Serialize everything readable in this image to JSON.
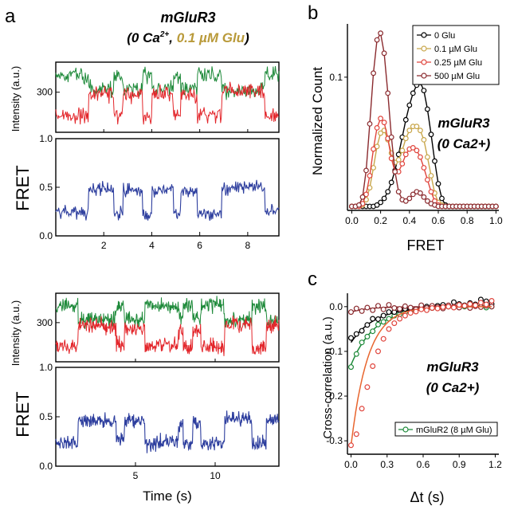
{
  "header": {
    "title": "mGluR3",
    "subtitle_prefix": "(0 Ca",
    "subtitle_sup": "2+",
    "subtitle_sep": ", ",
    "subtitle_glu": "0.1 µM Glu",
    "subtitle_suffix": ")"
  },
  "colors": {
    "green_donor": "#1e8a3a",
    "red_acceptor": "#e3262b",
    "blue_fret": "#2d3e9e",
    "c_0glu": "#000000",
    "c_01glu": "#c8a64a",
    "c_025glu": "#e0443c",
    "c_500glu": "#8a2a2e",
    "c_mglur2": "#1e8a3a",
    "c_fit": "#e8652e"
  },
  "chart_data": [
    {
      "id": "a_top",
      "panel_label": "a",
      "type": "line",
      "xlim": [
        0,
        9.3
      ],
      "xticks": [
        2,
        4,
        6,
        8
      ],
      "trace_ylim": [
        100,
        450
      ],
      "trace_yticks": [
        300
      ],
      "trace_ylabel": "Intensity (a.u.)",
      "fret_ylim": [
        0,
        1.0
      ],
      "fret_yticks": [
        "0.0",
        "0.5",
        "1.0"
      ],
      "fret_ylabel": "FRET",
      "xlabel": "",
      "segments": [
        {
          "t": [
            0,
            1.35
          ],
          "fret": 0.24
        },
        {
          "t": [
            1.35,
            2.4
          ],
          "fret": 0.48
        },
        {
          "t": [
            2.4,
            2.8
          ],
          "fret": 0.26
        },
        {
          "t": [
            2.8,
            3.6
          ],
          "fret": 0.47
        },
        {
          "t": [
            3.6,
            4.0
          ],
          "fret": 0.22
        },
        {
          "t": [
            4.0,
            4.9
          ],
          "fret": 0.48
        },
        {
          "t": [
            4.9,
            5.2
          ],
          "fret": 0.25
        },
        {
          "t": [
            5.2,
            5.9
          ],
          "fret": 0.47
        },
        {
          "t": [
            5.9,
            6.9
          ],
          "fret": 0.24
        },
        {
          "t": [
            6.9,
            8.7
          ],
          "fret": 0.5
        },
        {
          "t": [
            8.7,
            9.3
          ],
          "fret": 0.24
        }
      ]
    },
    {
      "id": "a_bottom",
      "type": "line",
      "xlim": [
        0,
        14
      ],
      "xticks": [
        5,
        10
      ],
      "trace_ylim": [
        100,
        450
      ],
      "trace_yticks": [
        300
      ],
      "trace_ylabel": "Intensity (a.u.)",
      "fret_ylim": [
        0,
        1.0
      ],
      "fret_yticks": [
        "0.0",
        "0.5",
        "1.0"
      ],
      "fret_ylabel": "FRET",
      "xlabel": "Time (s)",
      "segments": [
        {
          "t": [
            0,
            1.4
          ],
          "fret": 0.24
        },
        {
          "t": [
            1.4,
            3.8
          ],
          "fret": 0.46
        },
        {
          "t": [
            3.8,
            4.3
          ],
          "fret": 0.27
        },
        {
          "t": [
            4.3,
            5.6
          ],
          "fret": 0.45
        },
        {
          "t": [
            5.6,
            6.3
          ],
          "fret": 0.22
        },
        {
          "t": [
            6.3,
            7.7
          ],
          "fret": 0.25
        },
        {
          "t": [
            7.7,
            8.0
          ],
          "fret": 0.42
        },
        {
          "t": [
            8.0,
            8.6
          ],
          "fret": 0.22
        },
        {
          "t": [
            8.6,
            9.1
          ],
          "fret": 0.43
        },
        {
          "t": [
            9.1,
            10.6
          ],
          "fret": 0.23
        },
        {
          "t": [
            10.6,
            12.3
          ],
          "fret": 0.48
        },
        {
          "t": [
            12.3,
            13.2
          ],
          "fret": 0.23
        },
        {
          "t": [
            13.2,
            14
          ],
          "fret": 0.47
        }
      ]
    },
    {
      "id": "b",
      "panel_label": "b",
      "type": "line",
      "xlabel": "FRET",
      "ylabel": "Normalized Count",
      "xlim": [
        -0.03,
        1.02
      ],
      "ylim": [
        0,
        0.14
      ],
      "xticks": [
        "0.0",
        "0.2",
        "0.4",
        "0.6",
        "0.8",
        "1.0"
      ],
      "yticks": [
        "0.1"
      ],
      "annotation": [
        "mGluR3",
        "(0 Ca2+)"
      ],
      "legend_position": "top-right",
      "x": [
        0.0,
        0.025,
        0.05,
        0.075,
        0.1,
        0.125,
        0.15,
        0.175,
        0.2,
        0.225,
        0.25,
        0.275,
        0.3,
        0.325,
        0.35,
        0.375,
        0.4,
        0.425,
        0.45,
        0.475,
        0.5,
        0.525,
        0.55,
        0.575,
        0.6,
        0.625,
        0.65,
        0.675,
        0.7,
        0.725,
        0.75,
        0.775,
        0.8,
        0.825,
        0.85,
        0.875,
        0.9,
        0.925,
        0.95,
        0.975,
        1.0
      ],
      "series": [
        {
          "name": "0 Glu",
          "color": "#000000",
          "values": [
            0.003,
            0.003,
            0.003,
            0.003,
            0.003,
            0.003,
            0.003,
            0.004,
            0.006,
            0.009,
            0.014,
            0.021,
            0.03,
            0.042,
            0.055,
            0.068,
            0.079,
            0.088,
            0.094,
            0.096,
            0.09,
            0.076,
            0.057,
            0.037,
            0.02,
            0.009,
            0.004,
            0.003,
            0.003,
            0.003,
            0.003,
            0.003,
            0.003,
            0.003,
            0.003,
            0.003,
            0.003,
            0.003,
            0.003,
            0.003,
            0.003
          ]
        },
        {
          "name": "0.1 µM Glu",
          "color": "#c8a64a",
          "values": [
            0.003,
            0.003,
            0.003,
            0.004,
            0.008,
            0.017,
            0.032,
            0.048,
            0.058,
            0.06,
            0.053,
            0.043,
            0.036,
            0.038,
            0.045,
            0.054,
            0.06,
            0.063,
            0.063,
            0.06,
            0.053,
            0.04,
            0.026,
            0.013,
            0.006,
            0.004,
            0.003,
            0.003,
            0.003,
            0.003,
            0.003,
            0.003,
            0.003,
            0.003,
            0.003,
            0.003,
            0.003,
            0.003,
            0.003,
            0.003,
            0.003
          ]
        },
        {
          "name": "0.25 µM Glu",
          "color": "#e0443c",
          "values": [
            0.003,
            0.003,
            0.003,
            0.005,
            0.012,
            0.026,
            0.046,
            0.062,
            0.069,
            0.066,
            0.054,
            0.039,
            0.029,
            0.029,
            0.035,
            0.042,
            0.046,
            0.047,
            0.045,
            0.04,
            0.032,
            0.023,
            0.014,
            0.007,
            0.004,
            0.003,
            0.003,
            0.003,
            0.003,
            0.003,
            0.003,
            0.003,
            0.003,
            0.003,
            0.003,
            0.003,
            0.003,
            0.003,
            0.003,
            0.003,
            0.003
          ]
        },
        {
          "name": "500 µM Glu",
          "color": "#8a2a2e",
          "values": [
            0.003,
            0.003,
            0.004,
            0.01,
            0.03,
            0.065,
            0.103,
            0.128,
            0.133,
            0.118,
            0.088,
            0.055,
            0.029,
            0.014,
            0.008,
            0.007,
            0.009,
            0.012,
            0.014,
            0.013,
            0.01,
            0.007,
            0.005,
            0.004,
            0.003,
            0.003,
            0.003,
            0.003,
            0.003,
            0.003,
            0.003,
            0.003,
            0.003,
            0.003,
            0.003,
            0.003,
            0.003,
            0.003,
            0.003,
            0.003,
            0.003
          ]
        }
      ]
    },
    {
      "id": "c",
      "panel_label": "c",
      "type": "scatter",
      "xlabel": "Δt (s)",
      "ylabel": "Cross-correlation (a.u.)",
      "xlim": [
        -0.03,
        1.23
      ],
      "ylim": [
        -0.33,
        0.03
      ],
      "xticks": [
        "0.0",
        "0.3",
        "0.6",
        "0.9",
        "1.2"
      ],
      "yticks": [
        "0.0",
        "-0.1",
        "-0.2",
        "-0.3"
      ],
      "annotation": [
        "mGluR3",
        "(0 Ca2+)"
      ],
      "legend_position": "bottom-right",
      "legend_label": "mGluR2 (8 µM Glu)",
      "series": [
        {
          "name": "mGluR2 (8 µM Glu)",
          "color": "#1e8a3a",
          "fit_color": "#1e8a3a",
          "amp": -0.13,
          "tau": 0.2,
          "x": [
            0.0,
            0.045,
            0.09,
            0.135,
            0.18,
            0.225,
            0.27,
            0.315,
            0.36,
            0.405,
            0.45,
            0.495,
            0.54,
            0.585,
            0.63,
            0.675,
            0.72,
            0.765,
            0.81,
            0.855,
            0.9,
            0.945,
            0.99,
            1.035,
            1.08,
            1.125,
            1.17
          ],
          "values": [
            -0.135,
            -0.106,
            -0.08,
            -0.067,
            -0.055,
            -0.04,
            -0.034,
            -0.027,
            -0.02,
            -0.017,
            -0.013,
            -0.01,
            -0.007,
            -0.004,
            -0.005,
            -0.003,
            0.0,
            -0.002,
            0.001,
            -0.001,
            0.002,
            0.0,
            -0.001,
            0.003,
            0.001,
            -0.002,
            0.0
          ]
        },
        {
          "name": "0 Glu",
          "color": "#000000",
          "fit_color": "#000000",
          "amp": -0.08,
          "tau": 0.2,
          "x": [
            0.0,
            0.045,
            0.09,
            0.135,
            0.18,
            0.225,
            0.27,
            0.315,
            0.36,
            0.405,
            0.45,
            0.495,
            0.54,
            0.585,
            0.63,
            0.675,
            0.72,
            0.765,
            0.81,
            0.855,
            0.9,
            0.945,
            0.99,
            1.035,
            1.08,
            1.125,
            1.17
          ],
          "values": [
            -0.07,
            -0.061,
            -0.054,
            -0.041,
            -0.027,
            -0.028,
            -0.02,
            -0.012,
            -0.012,
            -0.008,
            -0.005,
            -0.004,
            -0.006,
            -0.002,
            0.0,
            -0.003,
            0.002,
            0.004,
            0.0,
            0.01,
            0.006,
            0.003,
            0.008,
            0.005,
            0.016,
            0.012,
            0.006
          ]
        },
        {
          "name": "500 µM Glu",
          "color": "#8a2a2e",
          "fit_color": "#8a2a2e",
          "amp": -0.012,
          "tau": 0.15,
          "x": [
            0.0,
            0.045,
            0.09,
            0.135,
            0.18,
            0.225,
            0.27,
            0.315,
            0.36,
            0.405,
            0.45,
            0.495,
            0.54,
            0.585,
            0.63,
            0.675,
            0.72,
            0.765,
            0.81,
            0.855,
            0.9,
            0.945,
            0.99,
            1.035,
            1.08,
            1.125,
            1.17
          ],
          "values": [
            -0.012,
            -0.004,
            -0.01,
            -0.002,
            -0.008,
            0.002,
            -0.006,
            0.004,
            -0.003,
            -0.005,
            0.001,
            -0.002,
            -0.006,
            0.003,
            -0.003,
            0.002,
            -0.001,
            -0.004,
            0.003,
            0.0,
            -0.002,
            0.002,
            -0.003,
            0.001,
            -0.001,
            0.002,
            0.0
          ]
        },
        {
          "name": "0.25 µM Glu",
          "color": "#e0443c",
          "fit_color": "#e8652e",
          "amp": -0.31,
          "tau": 0.14,
          "x": [
            0.0,
            0.045,
            0.09,
            0.135,
            0.18,
            0.225,
            0.27,
            0.315,
            0.36,
            0.405,
            0.45,
            0.495,
            0.54,
            0.585,
            0.63,
            0.675,
            0.72,
            0.765,
            0.81,
            0.855,
            0.9,
            0.945,
            0.99,
            1.035,
            1.08,
            1.125,
            1.17
          ],
          "values": [
            -0.31,
            -0.285,
            -0.228,
            -0.18,
            -0.133,
            -0.1,
            -0.072,
            -0.05,
            -0.037,
            -0.027,
            -0.02,
            -0.014,
            -0.011,
            -0.006,
            -0.008,
            -0.003,
            -0.004,
            -0.001,
            0.0,
            -0.002,
            0.004,
            0.002,
            0.006,
            0.003,
            0.009,
            0.005,
            0.013
          ]
        }
      ]
    }
  ]
}
